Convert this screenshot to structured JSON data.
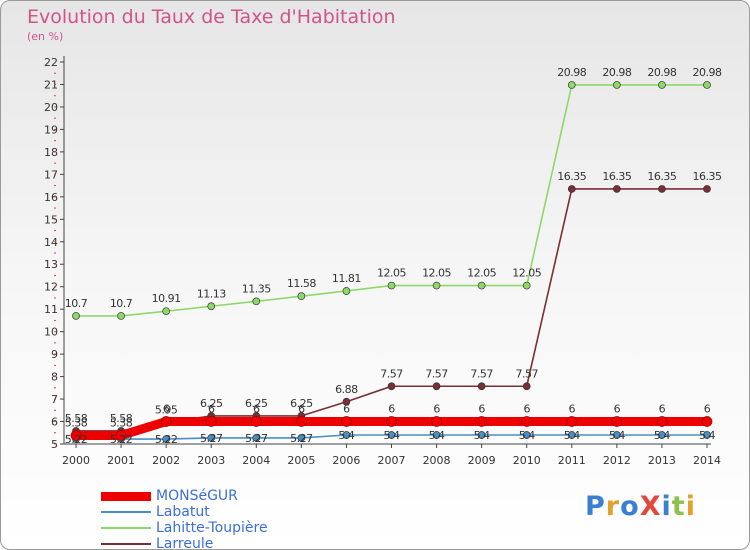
{
  "title": "Evolution du Taux de Taxe d'Habitation",
  "unit_label": "(en %)",
  "logo": {
    "text": "ProXiti",
    "colors": [
      "#3a7fd0",
      "#e3a22b",
      "#3a7fd0",
      "#e14a3a",
      "#3a7fd0",
      "#8bc34a",
      "#e3a22b"
    ]
  },
  "chart_data": {
    "type": "line",
    "x": [
      2000,
      2001,
      2002,
      2003,
      2004,
      2005,
      2006,
      2007,
      2008,
      2009,
      2010,
      2011,
      2012,
      2013,
      2014
    ],
    "ylim": [
      5,
      22
    ],
    "yticks": [
      5,
      6,
      7,
      8,
      9,
      10,
      11,
      12,
      13,
      14,
      15,
      16,
      17,
      18,
      19,
      20,
      21,
      22
    ],
    "grid": false,
    "legend_position": "bottom-left",
    "series": [
      {
        "name": "MONSéGUR",
        "color": "#ee0000",
        "values": [
          5.38,
          5.38,
          6,
          6,
          6,
          6,
          6,
          6,
          6,
          6,
          6,
          6,
          6,
          6,
          6
        ],
        "labels": [
          "5.38",
          "5.38",
          "6",
          "6",
          "6",
          "6",
          "6",
          "6",
          "6",
          "6",
          "6",
          "6",
          "6",
          "6",
          "6"
        ]
      },
      {
        "name": "Labatut",
        "color": "#4a8fc2",
        "values": [
          5.22,
          5.22,
          5.22,
          5.27,
          5.27,
          5.27,
          5.4,
          5.4,
          5.4,
          5.4,
          5.4,
          5.4,
          5.4,
          5.4,
          5.4
        ],
        "labels": [
          "5.22",
          "5.22",
          "5.22",
          "5.27",
          "5.27",
          "5.27",
          "5.4",
          "5.4",
          "5.4",
          "5.4",
          "5.4",
          "5.4",
          "5.4",
          "5.4",
          "5.4"
        ]
      },
      {
        "name": "Lahitte-Toupière",
        "color": "#8ed86a",
        "values": [
          10.7,
          10.7,
          10.91,
          11.13,
          11.35,
          11.58,
          11.81,
          12.05,
          12.05,
          12.05,
          12.05,
          20.98,
          20.98,
          20.98,
          20.98
        ],
        "labels": [
          "10.7",
          "10.7",
          "10.91",
          "11.13",
          "11.35",
          "11.58",
          "11.81",
          "12.05",
          "12.05",
          "12.05",
          "12.05",
          "20.98",
          "20.98",
          "20.98",
          "20.98"
        ]
      },
      {
        "name": "Larreule",
        "color": "#7a2f35",
        "values": [
          5.58,
          5.58,
          5.95,
          6.25,
          6.25,
          6.25,
          6.88,
          7.57,
          7.57,
          7.57,
          7.57,
          16.35,
          16.35,
          16.35,
          16.35
        ],
        "labels": [
          "5.58",
          "5.58",
          "5.95",
          "6.25",
          "6.25",
          "6.25",
          "6.88",
          "7.57",
          "7.57",
          "7.57",
          "7.57",
          "16.35",
          "16.35",
          "16.35",
          "16.35"
        ]
      }
    ]
  }
}
